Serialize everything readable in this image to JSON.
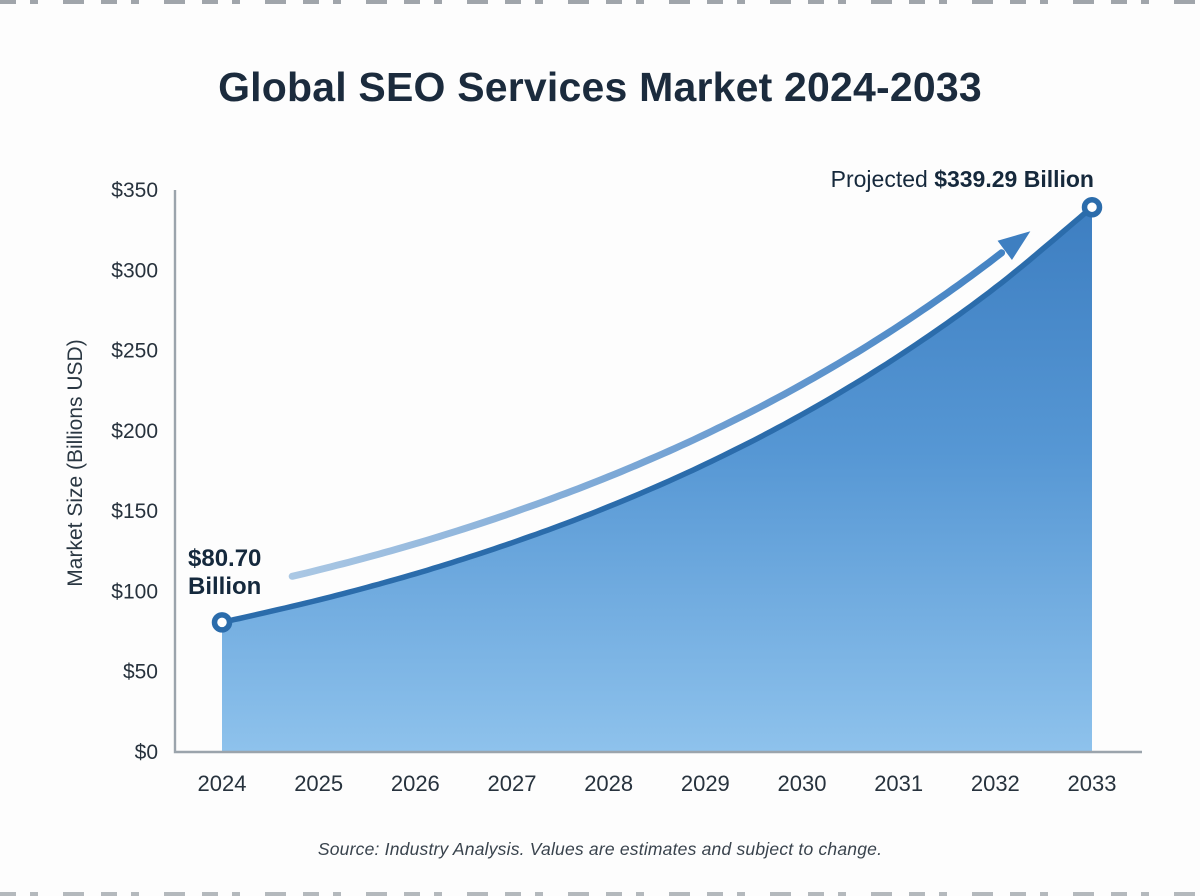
{
  "header": {
    "title": "Global SEO Services Market 2024-2033"
  },
  "chart_data": {
    "type": "area",
    "title": "Global SEO Services Market 2024-2033",
    "xlabel": "",
    "ylabel": "Market Size (Billions USD)",
    "categories": [
      "2024",
      "2025",
      "2026",
      "2027",
      "2028",
      "2029",
      "2030",
      "2031",
      "2032",
      "2033"
    ],
    "series": [
      {
        "name": "Global SEO Services Market Size (Billions USD)",
        "values": [
          80.7,
          94.7,
          111.0,
          130.3,
          152.8,
          179.2,
          210.2,
          246.6,
          289.2,
          339.29
        ]
      }
    ],
    "ylim": [
      0,
      350
    ],
    "y_ticks": [
      0,
      50,
      100,
      150,
      200,
      250,
      300,
      350
    ],
    "y_tick_labels": [
      "$0",
      "$50",
      "$100",
      "$150",
      "$200",
      "$250",
      "$300",
      "$350"
    ],
    "grid": false,
    "legend": "none",
    "point_annotations": [
      {
        "target": "2024",
        "text": "$80.70 Billion"
      },
      {
        "target": "2033",
        "text": "Projected $339.29 Billion"
      }
    ],
    "colors": {
      "area_top": "#3d7ec1",
      "area_mid": "#5697d4",
      "area_bottom": "#8ec2ec",
      "line": "#2b6cab",
      "marker_ring": "#2b6cab",
      "marker_fill": "#ffffff",
      "arrow_start": "#abc8e4",
      "arrow_end": "#3e7fc1",
      "axis": "#9ba4ac",
      "tick_text": "#27323d",
      "title_text": "#1b2b3d"
    }
  },
  "annotations": {
    "start": {
      "line1": "$80.70",
      "line2": "Billion"
    },
    "projected": {
      "prefix": "Projected ",
      "value": "$339.29 Billion"
    }
  },
  "footer": {
    "source_note": "Source: Industry Analysis. Values are estimates and subject to change."
  }
}
